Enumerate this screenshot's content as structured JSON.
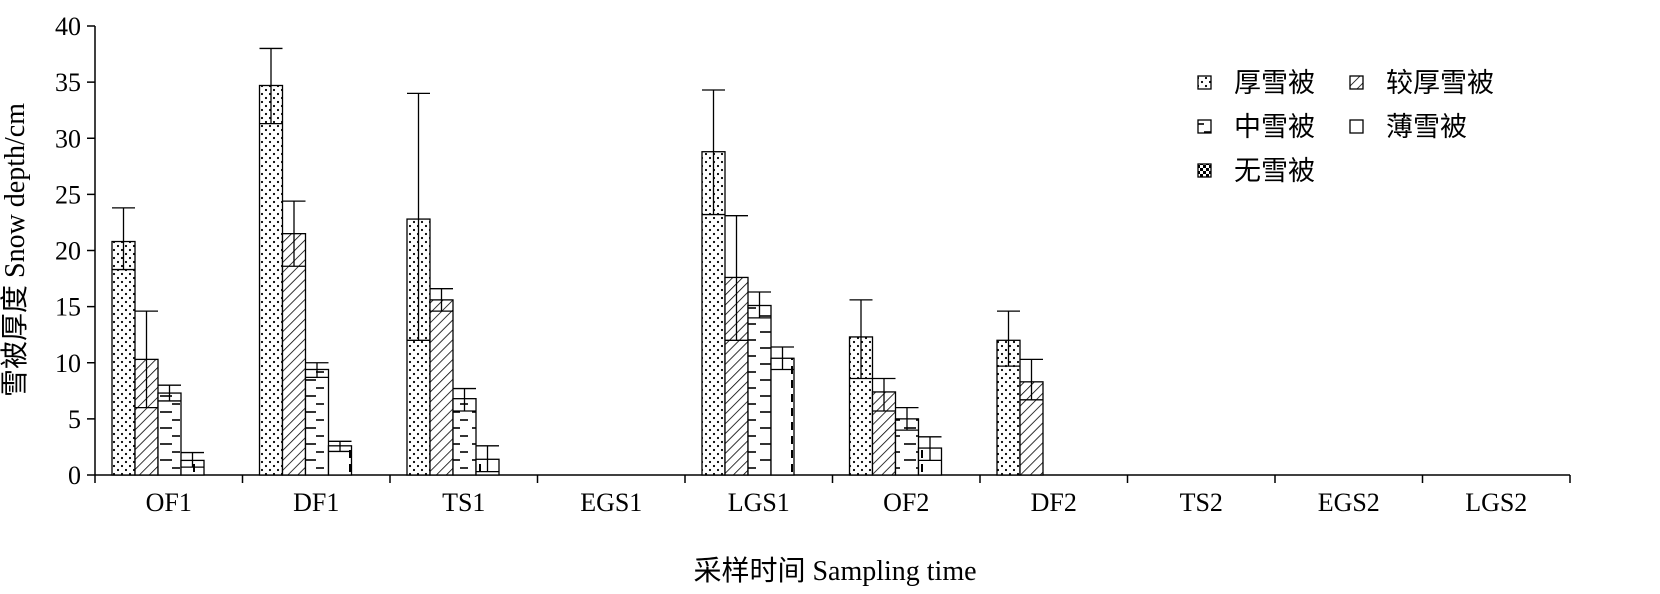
{
  "chart_data": {
    "type": "bar",
    "xlabel": "采样时间 Sampling time",
    "ylabel": "雪被厚度 Snow depth/cm",
    "ylim": [
      0,
      40
    ],
    "yticks": [
      0,
      5,
      10,
      15,
      20,
      25,
      30,
      35,
      40
    ],
    "categories": [
      "OF1",
      "DF1",
      "TS1",
      "EGS1",
      "LGS1",
      "OF2",
      "DF2",
      "TS2",
      "EGS2",
      "LGS2"
    ],
    "legend_position": "top-right",
    "grid": false,
    "series": [
      {
        "name": "厚雪被",
        "pattern": "dots",
        "values": [
          20.8,
          34.7,
          22.8,
          null,
          28.8,
          12.3,
          12.0,
          null,
          null,
          null
        ],
        "error_upper": [
          23.8,
          38.0,
          34.0,
          null,
          34.3,
          15.6,
          14.6,
          null,
          null,
          null
        ],
        "error_lower": [
          18.3,
          31.3,
          12.0,
          null,
          23.2,
          8.6,
          9.7,
          null,
          null,
          null
        ]
      },
      {
        "name": "较厚雪被",
        "pattern": "diagonal",
        "values": [
          10.3,
          21.5,
          15.6,
          null,
          17.6,
          7.4,
          8.3,
          null,
          null,
          null
        ],
        "error_upper": [
          14.6,
          24.4,
          16.6,
          null,
          23.1,
          8.6,
          10.3,
          null,
          null,
          null
        ],
        "error_lower": [
          6.0,
          18.6,
          14.6,
          null,
          12.0,
          5.7,
          6.7,
          null,
          null,
          null
        ]
      },
      {
        "name": "中雪被",
        "pattern": "dashes",
        "values": [
          7.3,
          9.4,
          6.8,
          null,
          15.1,
          5.0,
          null,
          null,
          null,
          null
        ],
        "error_upper": [
          8.0,
          10.0,
          7.7,
          null,
          16.3,
          6.0,
          null,
          null,
          null,
          null
        ],
        "error_lower": [
          6.6,
          8.7,
          5.7,
          null,
          14.0,
          4.0,
          null,
          null,
          null,
          null
        ]
      },
      {
        "name": "薄雪被",
        "pattern": "sparse-dashes",
        "values": [
          1.3,
          2.6,
          1.4,
          null,
          10.4,
          2.4,
          null,
          null,
          null,
          null
        ],
        "error_upper": [
          2.0,
          3.0,
          2.6,
          null,
          11.4,
          3.4,
          null,
          null,
          null,
          null
        ],
        "error_lower": [
          0.7,
          2.1,
          0.3,
          null,
          9.4,
          1.3,
          null,
          null,
          null,
          null
        ]
      },
      {
        "name": "无雪被",
        "pattern": "checker",
        "values": [
          null,
          null,
          null,
          null,
          null,
          null,
          null,
          null,
          null,
          null
        ],
        "error_upper": [
          null,
          null,
          null,
          null,
          null,
          null,
          null,
          null,
          null,
          null
        ],
        "error_lower": [
          null,
          null,
          null,
          null,
          null,
          null,
          null,
          null,
          null,
          null
        ]
      }
    ]
  }
}
